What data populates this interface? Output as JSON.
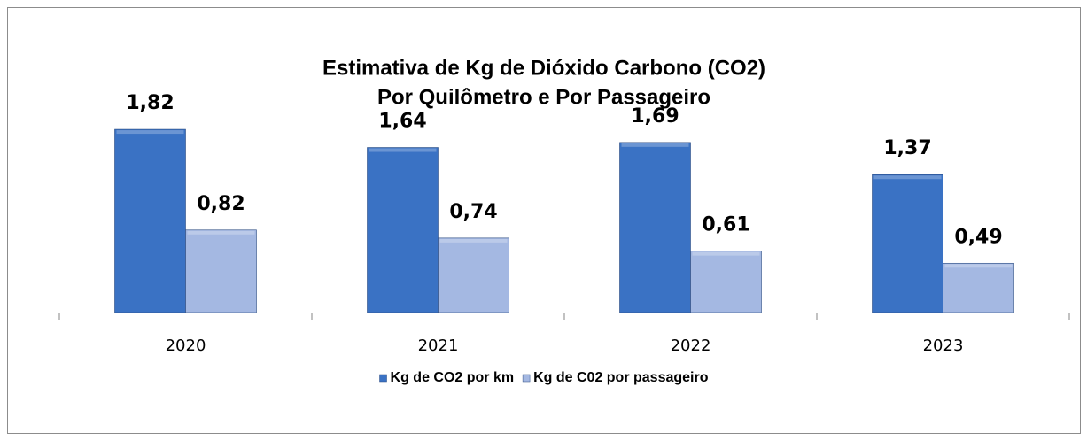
{
  "chart_data": {
    "type": "bar",
    "title": [
      "Estimativa de Kg de Dióxido Carbono (CO2)",
      "Por Quilômetro e Por Passageiro"
    ],
    "categories": [
      "2020",
      "2021",
      "2022",
      "2023"
    ],
    "series": [
      {
        "name": "Kg de CO2 por km",
        "color": "#3a72c4",
        "values": [
          1.82,
          1.64,
          1.69,
          1.37
        ],
        "value_labels": [
          "1,82",
          "1,64",
          "1,69",
          "1,37"
        ]
      },
      {
        "name": "Kg de C02 por passageiro",
        "color": "#a4b8e2",
        "values": [
          0.82,
          0.74,
          0.61,
          0.49
        ],
        "value_labels": [
          "0,82",
          "0,74",
          "0,61",
          "0,49"
        ]
      }
    ],
    "legend": "bottom"
  }
}
